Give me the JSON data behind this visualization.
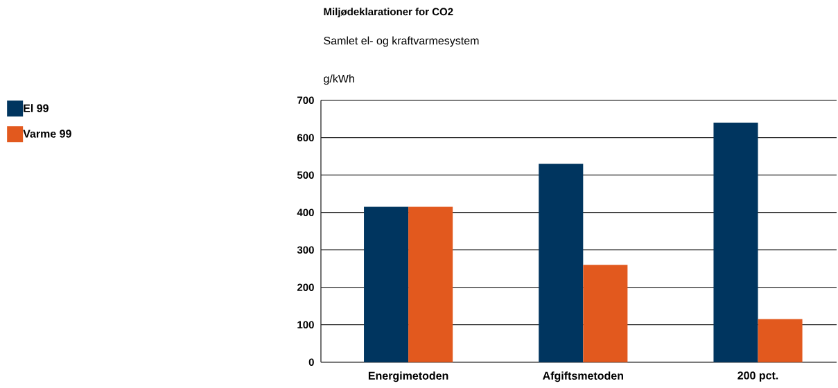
{
  "chart_data": {
    "type": "bar",
    "title": "Miljødeklarationer for CO2",
    "subtitle": "Samlet el- og kraftvarmesystem",
    "ylabel": "g/kWh",
    "categories": [
      "Energimetoden",
      "Afgiftsmetoden",
      "200 pct."
    ],
    "series": [
      {
        "name": "El 99",
        "color": "#00355f",
        "values": [
          415,
          530,
          640
        ]
      },
      {
        "name": "Varme 99",
        "color": "#e2591e",
        "values": [
          415,
          260,
          115
        ]
      }
    ],
    "ylim": [
      0,
      700
    ],
    "yticks": [
      0,
      100,
      200,
      300,
      400,
      500,
      600,
      700
    ],
    "grid": "y",
    "legend": "top left"
  }
}
